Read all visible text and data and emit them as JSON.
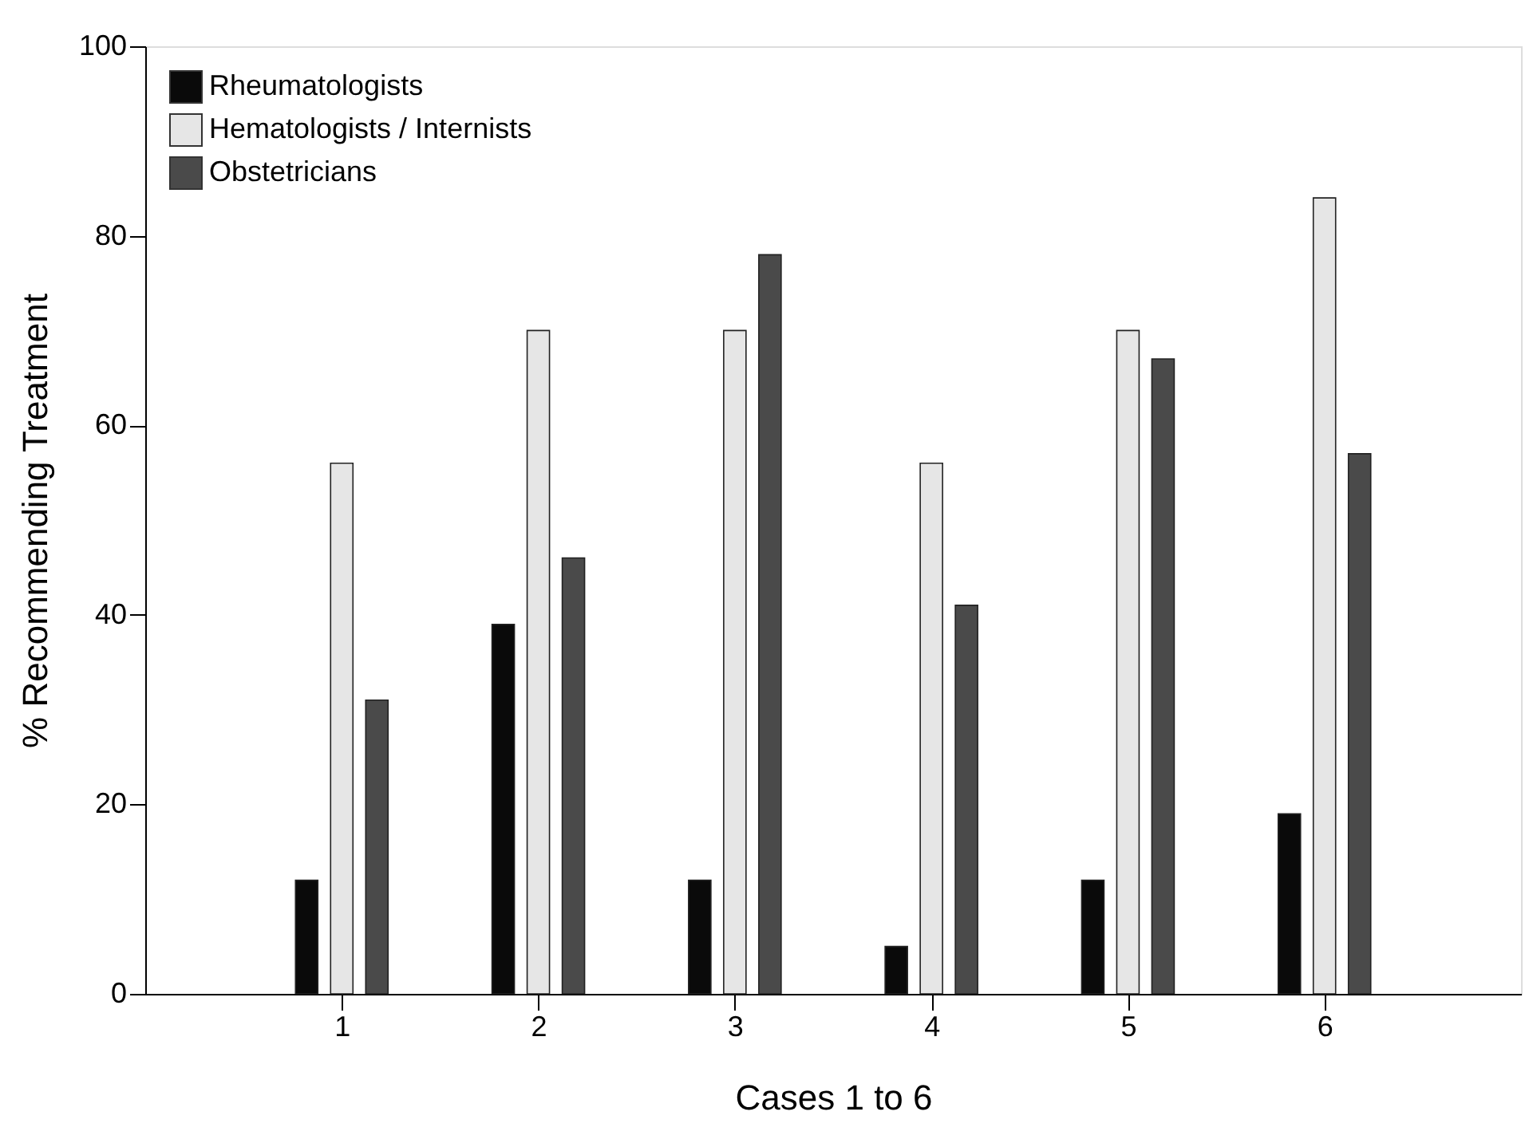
{
  "chart_data": {
    "type": "bar",
    "xlabel": "Cases 1 to 6",
    "ylabel": "% Recommending Treatment",
    "x": [
      1,
      2,
      3,
      4,
      5,
      6
    ],
    "xlim": [
      0,
      7
    ],
    "xticks": [
      1,
      2,
      3,
      4,
      5,
      6
    ],
    "ylim": [
      0,
      100
    ],
    "yticks": [
      0,
      20,
      40,
      60,
      80,
      100
    ],
    "series": [
      {
        "name": "Rheumatologists",
        "color": "#0a0a0a",
        "values": [
          12,
          39,
          12,
          5,
          12,
          19
        ]
      },
      {
        "name": "Hematologists / Internists",
        "color": "#e6e6e6",
        "values": [
          56,
          70,
          70,
          56,
          70,
          84
        ]
      },
      {
        "name": "Obstetricians",
        "color": "#4a4a4a",
        "values": [
          31,
          46,
          78,
          41,
          67,
          57
        ]
      }
    ],
    "legend": "top left",
    "grid": false
  }
}
